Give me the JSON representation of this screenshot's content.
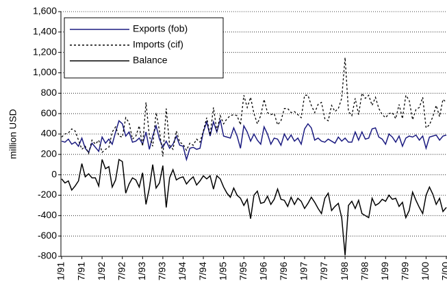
{
  "chart_data": {
    "type": "line",
    "y_label": "million USD",
    "categories": [
      "1/91",
      null,
      null,
      null,
      null,
      null,
      "7/91",
      null,
      null,
      null,
      null,
      null,
      "1/92",
      null,
      null,
      null,
      null,
      null,
      "7/92",
      null,
      null,
      null,
      null,
      null,
      "1/93",
      null,
      null,
      null,
      null,
      null,
      "7/93",
      null,
      null,
      null,
      null,
      null,
      "1/94",
      null,
      null,
      null,
      null,
      null,
      "7/94",
      null,
      null,
      null,
      null,
      null,
      "1/95",
      null,
      null,
      null,
      null,
      null,
      "7/95",
      null,
      null,
      null,
      null,
      null,
      "1/96",
      null,
      null,
      null,
      null,
      null,
      "7/96",
      null,
      null,
      null,
      null,
      null,
      "1/97",
      null,
      null,
      null,
      null,
      null,
      "7/97",
      null,
      null,
      null,
      null,
      null,
      "1/98",
      null,
      null,
      null,
      null,
      null,
      "7/98",
      null,
      null,
      null,
      null,
      null,
      "1/99",
      null,
      null,
      null,
      null,
      null,
      "7/99",
      null,
      null,
      null,
      null,
      null,
      "1/00",
      null,
      null,
      null,
      null,
      null,
      "7/00"
    ],
    "series": [
      {
        "name": "Exports (fob)",
        "color": "#1a1a80",
        "dash": "none",
        "values": [
          330,
          320,
          350,
          300,
          320,
          280,
          360,
          260,
          220,
          310,
          270,
          230,
          370,
          310,
          350,
          300,
          420,
          530,
          500,
          380,
          420,
          320,
          330,
          360,
          300,
          420,
          250,
          380,
          480,
          350,
          270,
          330,
          260,
          300,
          380,
          290,
          280,
          150,
          260,
          270,
          250,
          260,
          420,
          520,
          380,
          520,
          420,
          540,
          380,
          370,
          360,
          460,
          380,
          260,
          480,
          420,
          330,
          400,
          340,
          300,
          470,
          400,
          300,
          360,
          350,
          290,
          400,
          340,
          390,
          330,
          360,
          300,
          450,
          500,
          460,
          340,
          360,
          330,
          320,
          350,
          330,
          310,
          370,
          330,
          360,
          320,
          320,
          420,
          340,
          420,
          350,
          360,
          450,
          460,
          370,
          350,
          300,
          400,
          370,
          320,
          380,
          280,
          360,
          380,
          370,
          390,
          340,
          380,
          260,
          370,
          380,
          390,
          340,
          380,
          390
        ]
      },
      {
        "name": "Imports (cif)",
        "color": "#000000",
        "dash": "3,3",
        "values": [
          370,
          400,
          410,
          450,
          430,
          340,
          250,
          280,
          210,
          340,
          300,
          340,
          220,
          250,
          270,
          420,
          470,
          380,
          370,
          560,
          510,
          350,
          380,
          480,
          280,
          710,
          380,
          280,
          610,
          430,
          180,
          650,
          290,
          250,
          430,
          320,
          300,
          240,
          310,
          290,
          350,
          320,
          430,
          560,
          390,
          660,
          430,
          580,
          500,
          550,
          580,
          590,
          580,
          490,
          780,
          660,
          760,
          600,
          500,
          580,
          740,
          610,
          590,
          600,
          490,
          530,
          650,
          650,
          610,
          620,
          590,
          560,
          780,
          780,
          680,
          610,
          690,
          710,
          550,
          530,
          680,
          620,
          650,
          750,
          1150,
          620,
          580,
          750,
          590,
          800,
          750,
          780,
          680,
          760,
          650,
          590,
          560,
          600,
          610,
          550,
          690,
          550,
          780,
          730,
          540,
          640,
          660,
          760,
          460,
          490,
          570,
          680,
          570,
          740,
          710
        ]
      },
      {
        "name": "Balance",
        "color": "#000000",
        "dash": "none",
        "values": [
          -40,
          -80,
          -60,
          -150,
          -110,
          -60,
          110,
          -20,
          10,
          -30,
          -30,
          -110,
          150,
          60,
          80,
          -120,
          -50,
          150,
          130,
          -180,
          -90,
          -30,
          -50,
          -120,
          20,
          -290,
          -130,
          100,
          -130,
          -80,
          90,
          -320,
          -30,
          50,
          -50,
          -30,
          -20,
          -90,
          -50,
          -20,
          -100,
          -60,
          -10,
          -40,
          -10,
          -140,
          -10,
          -40,
          -120,
          -180,
          -220,
          -130,
          -200,
          -230,
          -300,
          -240,
          -430,
          -200,
          -160,
          -280,
          -270,
          -210,
          -290,
          -240,
          -140,
          -240,
          -250,
          -310,
          -220,
          -290,
          -230,
          -260,
          -330,
          -280,
          -220,
          -270,
          -330,
          -380,
          -230,
          -180,
          -350,
          -310,
          -280,
          -420,
          -790,
          -300,
          -260,
          -330,
          -250,
          -380,
          -400,
          -420,
          -230,
          -300,
          -280,
          -240,
          -260,
          -200,
          -240,
          -230,
          -310,
          -270,
          -420,
          -350,
          -170,
          -250,
          -320,
          -380,
          -200,
          -120,
          -190,
          -290,
          -230,
          -360,
          -320
        ]
      }
    ],
    "ylim": [
      -800,
      1600
    ],
    "yticks": [
      -800,
      -600,
      -400,
      -200,
      0,
      200,
      400,
      600,
      800,
      {
        "value": 1000,
        "label": "1,000"
      },
      {
        "value": 1200,
        "label": "1,200"
      },
      {
        "value": 1400,
        "label": "1,400"
      },
      {
        "value": 1600,
        "label": "1,600"
      }
    ],
    "grid": true,
    "legend": "top-left"
  }
}
